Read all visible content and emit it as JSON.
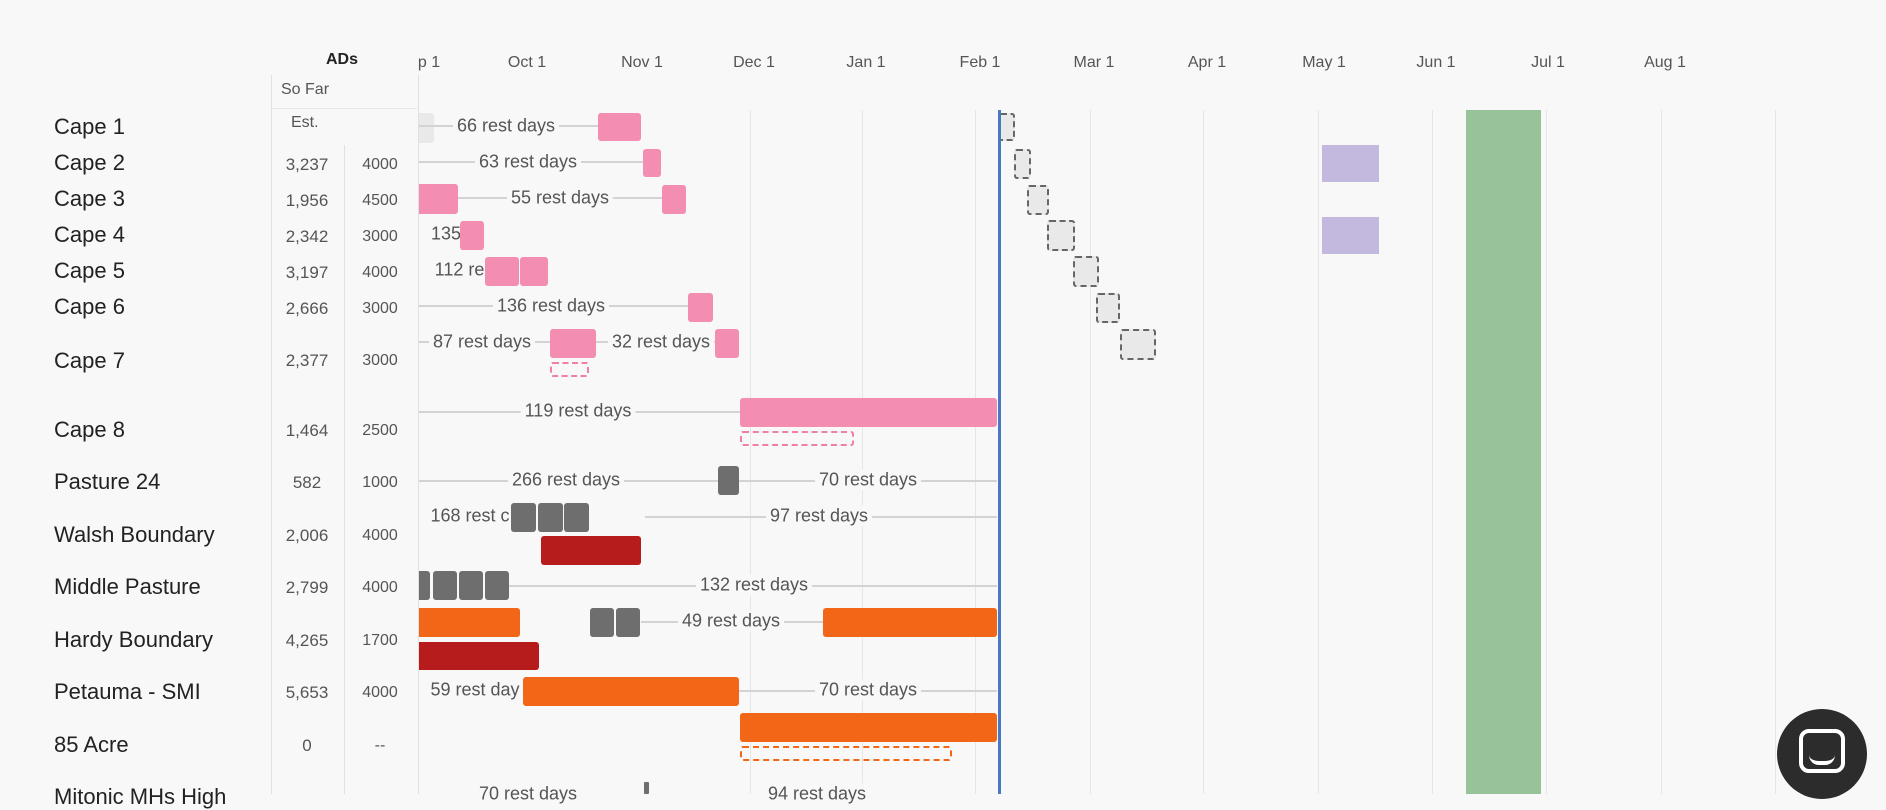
{
  "header": {
    "months": [
      "p 1",
      "Oct 1",
      "Nov 1",
      "Dec 1",
      "Jan 1",
      "Feb 1",
      "Mar 1",
      "Apr 1",
      "May 1",
      "Jun 1",
      "Jul 1",
      "Aug 1"
    ]
  },
  "ads": {
    "title": "ADs",
    "so_far_label": "So Far",
    "est_label": "Est."
  },
  "pastures": [
    {
      "name": "Cape 1",
      "so_far": "",
      "est": ""
    },
    {
      "name": "Cape 2",
      "so_far": "3,237",
      "est": "4000"
    },
    {
      "name": "Cape 3",
      "so_far": "1,956",
      "est": "4500"
    },
    {
      "name": "Cape 4",
      "so_far": "2,342",
      "est": "3000"
    },
    {
      "name": "Cape 5",
      "so_far": "3,197",
      "est": "4000"
    },
    {
      "name": "Cape 6",
      "so_far": "2,666",
      "est": "3000"
    },
    {
      "name": "Cape 7",
      "so_far": "2,377",
      "est": "3000"
    },
    {
      "name": "Cape 8",
      "so_far": "1,464",
      "est": "2500"
    },
    {
      "name": "Pasture 24",
      "so_far": "582",
      "est": "1000"
    },
    {
      "name": "Walsh Boundary",
      "so_far": "2,006",
      "est": "4000"
    },
    {
      "name": "Middle Pasture",
      "so_far": "2,799",
      "est": "4000"
    },
    {
      "name": "Hardy Boundary",
      "so_far": "4,265",
      "est": "1700"
    },
    {
      "name": "Petauma - SMI",
      "so_far": "5,653",
      "est": "4000"
    },
    {
      "name": "85 Acre",
      "so_far": "0",
      "est": "--"
    },
    {
      "name": "Mitonic MHs High",
      "so_far": "",
      "est": ""
    }
  ],
  "rest_labels": [
    "66 rest days",
    "63 rest days",
    "55 rest days",
    "135",
    "112 re:",
    "136 rest days",
    "87 rest days",
    "32 rest days",
    "119 rest days",
    "266 rest days",
    "70 rest days",
    "168 rest c",
    "97 rest days",
    "132 rest days",
    "49 rest days",
    "59 rest day",
    "70 rest days",
    "70 rest days",
    "94 rest days"
  ],
  "colors": {
    "pink": "#f38db2",
    "grey": "#6e6e6e",
    "red": "#b71c1c",
    "orange": "#f26617",
    "lavender": "#c3b8de",
    "green": "#98c398",
    "today": "#4a78c2"
  }
}
